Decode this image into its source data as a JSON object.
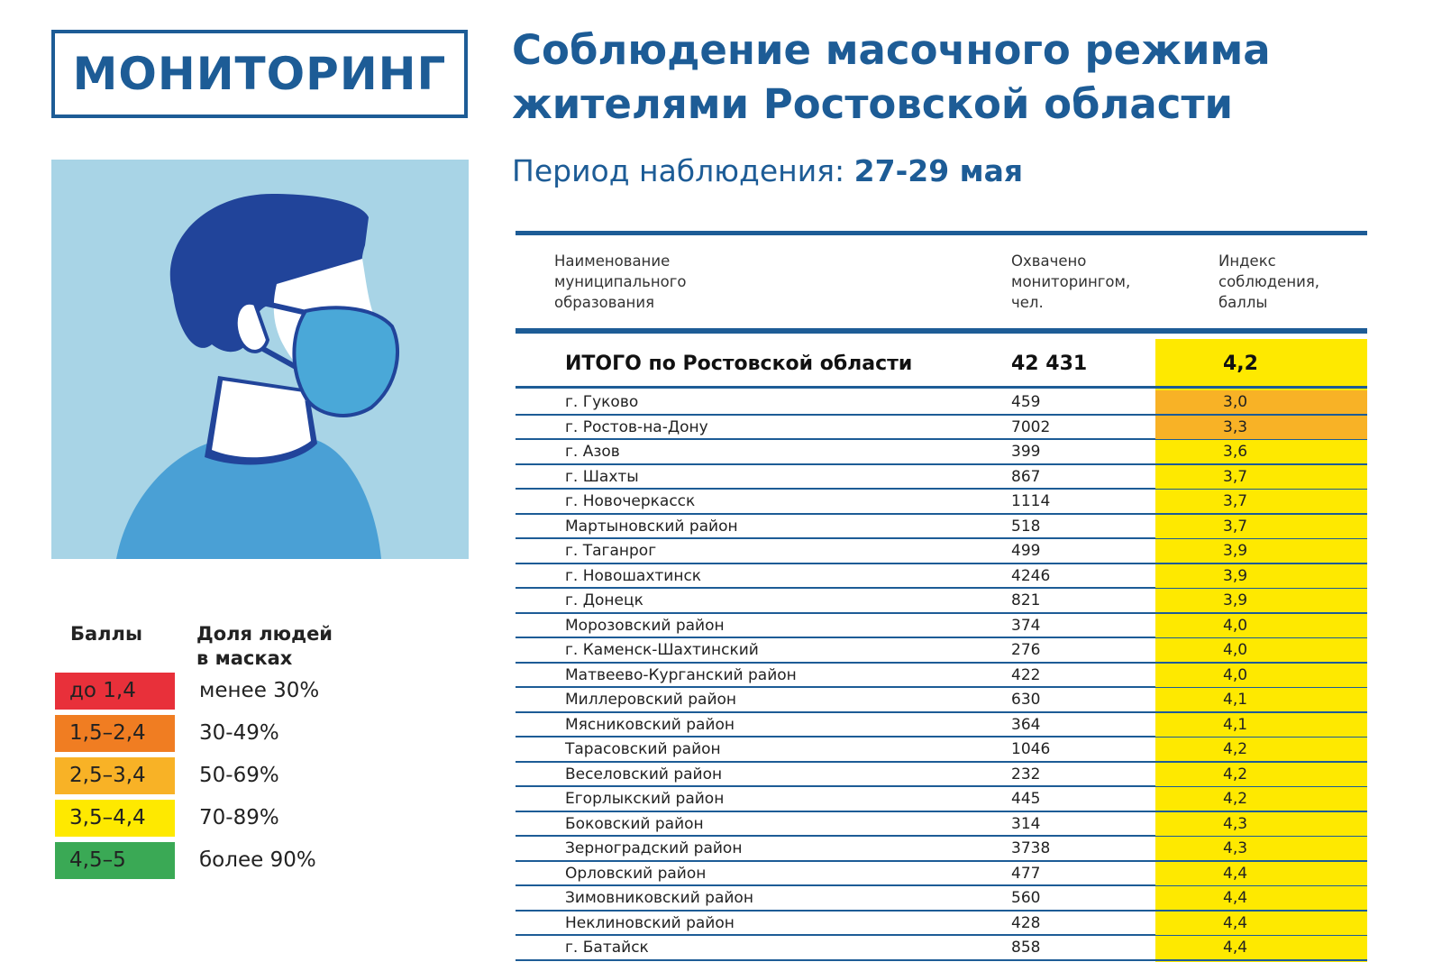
{
  "badge": "МОНИТОРИНГ",
  "title": {
    "line1": "Соблюдение масочного режима",
    "line2": "жителями Ростовской области"
  },
  "period": {
    "label": "Период наблюдения:",
    "value": "27-29 мая"
  },
  "legend": {
    "col1": "Баллы",
    "col2_line1": "Доля людей",
    "col2_line2": "в масках",
    "items": [
      {
        "range": "до 1,4",
        "share": "менее 30%",
        "color": "#e8303a"
      },
      {
        "range": "1,5–2,4",
        "share": "30-49%",
        "color": "#f07d22"
      },
      {
        "range": "2,5–3,4",
        "share": "50-69%",
        "color": "#f8b226"
      },
      {
        "range": "3,5–4,4",
        "share": "70-89%",
        "color": "#fee900"
      },
      {
        "range": "4,5–5",
        "share": "более 90%",
        "color": "#3aa955"
      }
    ]
  },
  "colors": {
    "brand_blue": "#1d5c96",
    "bg_light_blue": "#a8d4e6",
    "hair_dark_blue": "#21449a",
    "mask_blue": "#4aa8d8",
    "shirt_blue": "#4aa0d5"
  },
  "chart_data": {
    "type": "table",
    "columns": [
      "Наименование муниципального образования",
      "Охвачено мониторингом, чел.",
      "Индекс соблюдения, баллы"
    ],
    "column_lines": [
      [
        "Наименование",
        "муниципального",
        "образования"
      ],
      [
        "Охвачено",
        "мониторингом,",
        "чел."
      ],
      [
        "Индекс",
        "соблюдения,",
        "баллы"
      ]
    ],
    "total": {
      "name": "ИТОГО по Ростовской области",
      "covered": "42 431",
      "index": "4,2",
      "color": "#fee900"
    },
    "rows": [
      {
        "name": "г. Гуково",
        "covered": "459",
        "index": "3,0",
        "color": "#f8b226"
      },
      {
        "name": "г. Ростов-на-Дону",
        "covered": "7002",
        "index": "3,3",
        "color": "#f8b226"
      },
      {
        "name": "г. Азов",
        "covered": "399",
        "index": "3,6",
        "color": "#fee900"
      },
      {
        "name": "г. Шахты",
        "covered": "867",
        "index": "3,7",
        "color": "#fee900"
      },
      {
        "name": "г. Новочеркасск",
        "covered": "1114",
        "index": "3,7",
        "color": "#fee900"
      },
      {
        "name": "Мартыновский район",
        "covered": "518",
        "index": "3,7",
        "color": "#fee900"
      },
      {
        "name": "г. Таганрог",
        "covered": "499",
        "index": "3,9",
        "color": "#fee900"
      },
      {
        "name": "г. Новошахтинск",
        "covered": "4246",
        "index": "3,9",
        "color": "#fee900"
      },
      {
        "name": "г. Донецк",
        "covered": "821",
        "index": "3,9",
        "color": "#fee900"
      },
      {
        "name": "Морозовский район",
        "covered": "374",
        "index": "4,0",
        "color": "#fee900"
      },
      {
        "name": "г. Каменск-Шахтинский",
        "covered": "276",
        "index": "4,0",
        "color": "#fee900"
      },
      {
        "name": "Матвеево-Курганский район",
        "covered": "422",
        "index": "4,0",
        "color": "#fee900"
      },
      {
        "name": "Миллеровский район",
        "covered": "630",
        "index": "4,1",
        "color": "#fee900"
      },
      {
        "name": "Мясниковский район",
        "covered": "364",
        "index": "4,1",
        "color": "#fee900"
      },
      {
        "name": "Тарасовский район",
        "covered": "1046",
        "index": "4,2",
        "color": "#fee900"
      },
      {
        "name": "Веселовский район",
        "covered": "232",
        "index": "4,2",
        "color": "#fee900"
      },
      {
        "name": "Егорлыкский район",
        "covered": "445",
        "index": "4,2",
        "color": "#fee900"
      },
      {
        "name": "Боковский район",
        "covered": "314",
        "index": "4,3",
        "color": "#fee900"
      },
      {
        "name": "Зерноградский район",
        "covered": "3738",
        "index": "4,3",
        "color": "#fee900"
      },
      {
        "name": "Орловский район",
        "covered": "477",
        "index": "4,4",
        "color": "#fee900"
      },
      {
        "name": "Зимовниковский район",
        "covered": "560",
        "index": "4,4",
        "color": "#fee900"
      },
      {
        "name": "Неклиновский район",
        "covered": "428",
        "index": "4,4",
        "color": "#fee900"
      },
      {
        "name": "г. Батайск",
        "covered": "858",
        "index": "4,4",
        "color": "#fee900"
      }
    ]
  }
}
